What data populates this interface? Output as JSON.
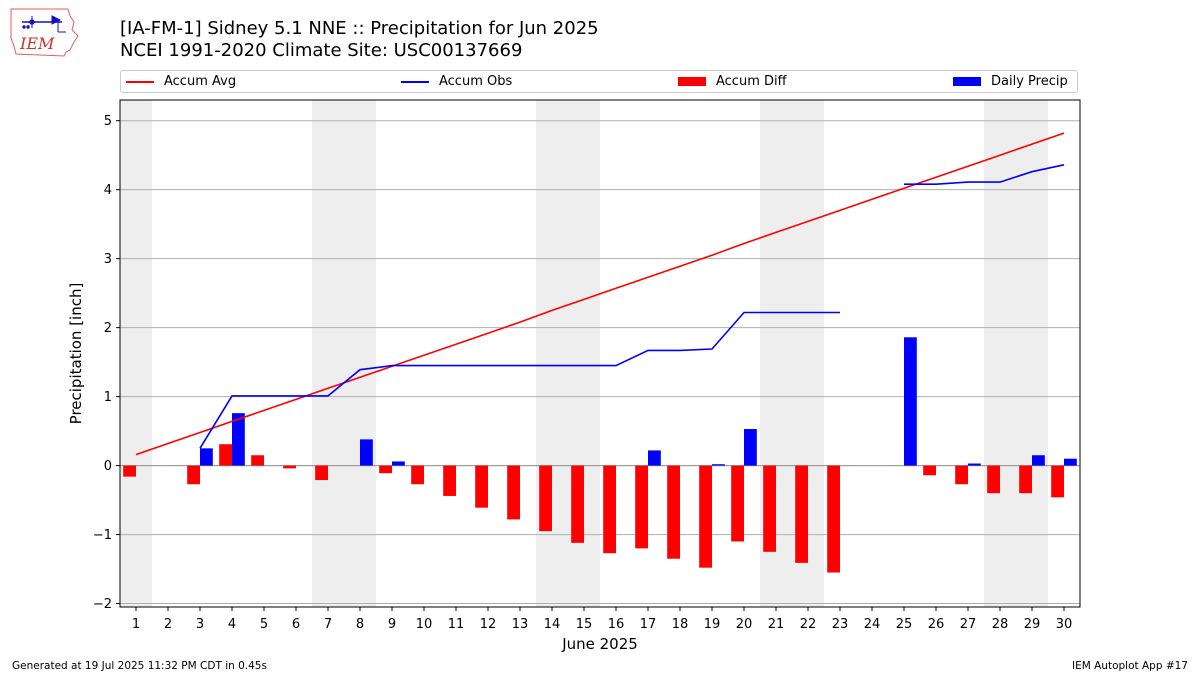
{
  "logo": {
    "text": "IEM",
    "icon": "iowa-state-outline-icon"
  },
  "title_line1": "[IA-FM-1] Sidney 5.1 NNE :: Precipitation for Jun 2025",
  "title_line2": "NCEI 1991-2020 Climate Site: USC00137669",
  "legend": {
    "accum_avg": "Accum Avg",
    "accum_obs": "Accum Obs",
    "accum_diff": "Accum Diff",
    "daily_precip": "Daily Precip"
  },
  "footer_left": "Generated at 19 Jul 2025 11:32 PM CDT in 0.45s",
  "footer_right": "IEM Autoplot App #17",
  "colors": {
    "avg": "#ff0000",
    "obs": "#0000ff",
    "diff": "#ff0000",
    "daily": "#0000ff",
    "weekend": "#eeeeee",
    "grid": "#b0b0b0"
  },
  "chart_data": {
    "type": "bar",
    "title": "[IA-FM-1] Sidney 5.1 NNE :: Precipitation for Jun 2025",
    "xlabel": "June 2025",
    "ylabel": "Precipitation [inch]",
    "ylim": [
      -2.05,
      5.3
    ],
    "yticks": [
      -2,
      -1,
      0,
      1,
      2,
      3,
      4,
      5
    ],
    "ytick_labels": [
      "−2",
      "−1",
      "0",
      "1",
      "2",
      "3",
      "4",
      "5"
    ],
    "x": [
      1,
      2,
      3,
      4,
      5,
      6,
      7,
      8,
      9,
      10,
      11,
      12,
      13,
      14,
      15,
      16,
      17,
      18,
      19,
      20,
      21,
      22,
      23,
      24,
      25,
      26,
      27,
      28,
      29,
      30
    ],
    "weekend_days": [
      1,
      7,
      8,
      14,
      15,
      21,
      22,
      28,
      29
    ],
    "grid": "horizontal",
    "legend_position": "top",
    "series": [
      {
        "name": "Accum Avg",
        "type": "line",
        "color": "#ff0000",
        "values": [
          0.16,
          0.32,
          0.48,
          0.64,
          0.8,
          0.96,
          1.12,
          1.28,
          1.44,
          1.6,
          1.76,
          1.92,
          2.08,
          2.25,
          2.41,
          2.57,
          2.73,
          2.89,
          3.05,
          3.22,
          3.38,
          3.54,
          3.7,
          3.86,
          4.02,
          4.18,
          4.34,
          4.5,
          4.66,
          4.82
        ]
      },
      {
        "name": "Accum Obs",
        "type": "line",
        "color": "#0000ff",
        "values": [
          null,
          null,
          0.25,
          1.01,
          1.01,
          1.01,
          1.01,
          1.39,
          1.45,
          1.45,
          1.45,
          1.45,
          1.45,
          1.45,
          1.45,
          1.45,
          1.67,
          1.67,
          1.69,
          2.22,
          2.22,
          2.22,
          2.22,
          null,
          4.08,
          4.08,
          4.11,
          4.11,
          4.26,
          4.36
        ]
      },
      {
        "name": "Accum Diff",
        "type": "bar",
        "color": "#ff0000",
        "values": [
          -0.16,
          null,
          -0.27,
          0.31,
          0.15,
          -0.04,
          -0.21,
          null,
          -0.11,
          -0.27,
          -0.44,
          -0.61,
          -0.78,
          -0.95,
          -1.12,
          -1.27,
          -1.2,
          -1.35,
          -1.48,
          -1.1,
          -1.25,
          -1.41,
          -1.55,
          null,
          null,
          -0.14,
          -0.27,
          -0.4,
          -0.4,
          -0.46
        ]
      },
      {
        "name": "Daily Precip",
        "type": "bar",
        "color": "#0000ff",
        "values": [
          0,
          0,
          0.25,
          0.76,
          0,
          0,
          0,
          0.38,
          0.06,
          0,
          0,
          0,
          0,
          0,
          0,
          0,
          0.22,
          0,
          0.02,
          0.53,
          0,
          0,
          0,
          0,
          1.86,
          0,
          0.03,
          0,
          0.15,
          0.1
        ]
      }
    ]
  }
}
